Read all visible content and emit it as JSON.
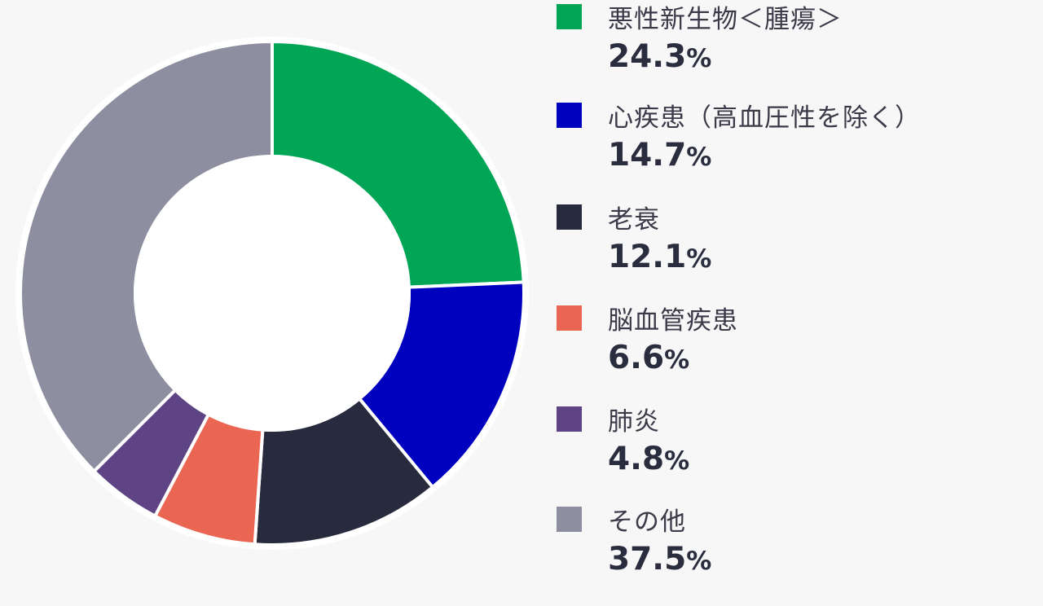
{
  "chart_data": {
    "type": "pie",
    "donut": true,
    "start_angle_deg": 0,
    "direction": "clockwise",
    "unit": "%",
    "slices": [
      {
        "label": "悪性新生物＜腫瘍＞",
        "value": 24.3,
        "value_text": "24.3",
        "unit": "%",
        "color": "#00a656"
      },
      {
        "label": "心疾患（高血圧性を除く）",
        "value": 14.7,
        "value_text": "14.7",
        "unit": "%",
        "color": "#0000bf"
      },
      {
        "label": "老衰",
        "value": 12.1,
        "value_text": "12.1",
        "unit": "%",
        "color": "#282b3d"
      },
      {
        "label": "脳血管疾患",
        "value": 6.6,
        "value_text": "6.6",
        "unit": "%",
        "color": "#ea6552"
      },
      {
        "label": "肺炎",
        "value": 4.8,
        "value_text": "4.8",
        "unit": "%",
        "color": "#5e4485"
      },
      {
        "label": "その他",
        "value": 37.5,
        "value_text": "37.5",
        "unit": "%",
        "color": "#8d8ea0"
      }
    ],
    "legend_placement": "right"
  }
}
